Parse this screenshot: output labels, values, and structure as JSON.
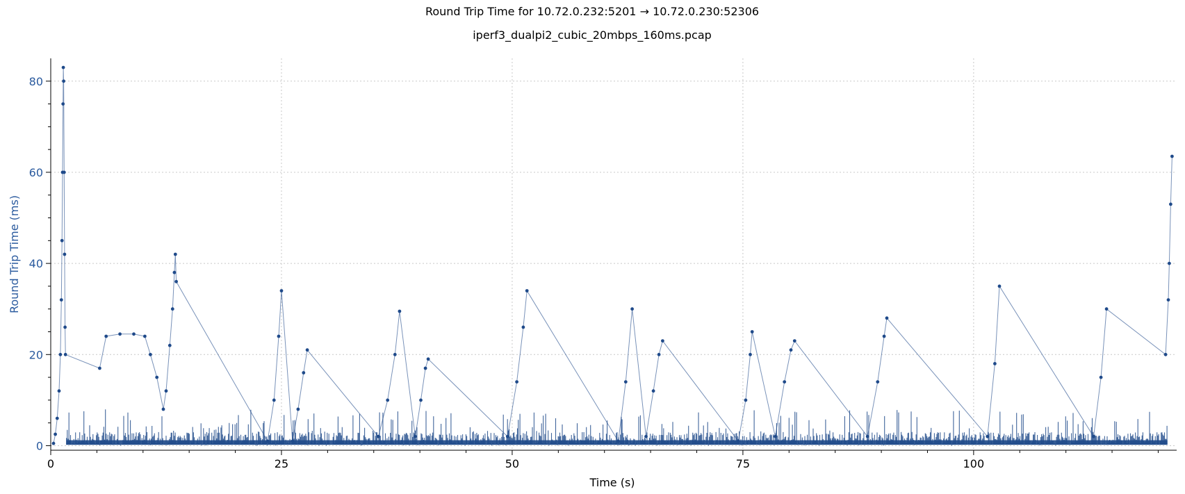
{
  "chart_data": {
    "type": "scatter",
    "title": "Round Trip Time for 10.72.0.232:5201 → 10.72.0.230:52306",
    "subtitle": "iperf3_dualpi2_cubic_20mbps_160ms.pcap",
    "xlabel": "Time (s)",
    "ylabel": "Round Trip Time (ms)",
    "xlim": [
      0,
      122
    ],
    "ylim": [
      -1,
      85
    ],
    "xticks": [
      0,
      25,
      50,
      75,
      100
    ],
    "yticks": [
      0,
      20,
      40,
      60,
      80
    ],
    "grid": true,
    "colors": {
      "series": "#1f4a8a",
      "ylabel": "#2a5a9e",
      "grid": "#c8c8c8"
    },
    "series": [
      {
        "points": [
          [
            0.3,
            0.5
          ],
          [
            0.5,
            2.5
          ],
          [
            0.7,
            6
          ],
          [
            0.9,
            12
          ],
          [
            1.05,
            20
          ],
          [
            1.15,
            32
          ],
          [
            1.22,
            45
          ],
          [
            1.28,
            60
          ],
          [
            1.33,
            75
          ],
          [
            1.36,
            83
          ],
          [
            1.4,
            80
          ],
          [
            1.45,
            60
          ],
          [
            1.5,
            42
          ],
          [
            1.55,
            26
          ],
          [
            1.6,
            20
          ],
          [
            5.3,
            17
          ],
          [
            6,
            24
          ],
          [
            7.5,
            24.5
          ],
          [
            9,
            24.5
          ],
          [
            10.2,
            24
          ],
          [
            10.8,
            20
          ],
          [
            11.5,
            15
          ],
          [
            12.2,
            8
          ],
          [
            12.5,
            12
          ],
          [
            12.9,
            22
          ],
          [
            13.2,
            30
          ],
          [
            13.4,
            38
          ],
          [
            13.5,
            42
          ],
          [
            13.6,
            36
          ],
          [
            23.5,
            1
          ],
          [
            24.2,
            10
          ],
          [
            24.7,
            24
          ],
          [
            25,
            34
          ],
          [
            26.2,
            1
          ],
          [
            26.8,
            8
          ],
          [
            27.4,
            16
          ],
          [
            27.8,
            21
          ],
          [
            35.5,
            2
          ],
          [
            36.5,
            10
          ],
          [
            37.3,
            20
          ],
          [
            37.8,
            29.5
          ],
          [
            39.5,
            2
          ],
          [
            40.1,
            10
          ],
          [
            40.6,
            17
          ],
          [
            40.9,
            19
          ],
          [
            49.5,
            2
          ],
          [
            50.5,
            14
          ],
          [
            51.2,
            26
          ],
          [
            51.6,
            34
          ],
          [
            61.5,
            1
          ],
          [
            62.3,
            14
          ],
          [
            63,
            30
          ],
          [
            64.5,
            2
          ],
          [
            65.3,
            12
          ],
          [
            65.9,
            20
          ],
          [
            66.3,
            23
          ],
          [
            74.5,
            1
          ],
          [
            75.3,
            10
          ],
          [
            75.8,
            20
          ],
          [
            76,
            25
          ],
          [
            78.5,
            2
          ],
          [
            79.5,
            14
          ],
          [
            80.2,
            21
          ],
          [
            80.6,
            23
          ],
          [
            88.5,
            2
          ],
          [
            89.6,
            14
          ],
          [
            90.3,
            24
          ],
          [
            90.6,
            28
          ],
          [
            101.5,
            2
          ],
          [
            102.3,
            18
          ],
          [
            102.8,
            35
          ],
          [
            113,
            2
          ],
          [
            113.8,
            15
          ],
          [
            114.4,
            30
          ],
          [
            120.8,
            20
          ],
          [
            121.1,
            32
          ],
          [
            121.2,
            40
          ],
          [
            121.35,
            53
          ],
          [
            121.5,
            63.5
          ]
        ]
      }
    ]
  }
}
